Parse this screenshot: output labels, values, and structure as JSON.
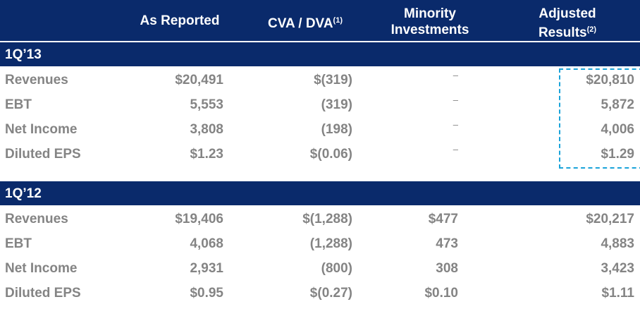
{
  "header": {
    "as_reported": "As Reported",
    "cva_dva": "CVA / DVA",
    "cva_dva_note": "(1)",
    "minority_line1": "Minority",
    "minority_line2": "Investments",
    "adjusted_line1": "Adjusted",
    "adjusted_line2": "Results",
    "adjusted_note": "(2)"
  },
  "sections": [
    {
      "label": "1Q’13",
      "rows": [
        {
          "label": "Revenues",
          "as_reported": "$20,491",
          "cva_dva": "$(319)",
          "minority": "–",
          "adjusted": "$20,810"
        },
        {
          "label": "EBT",
          "as_reported": "5,553",
          "cva_dva": "(319)",
          "minority": "–",
          "adjusted": "5,872"
        },
        {
          "label": "Net Income",
          "as_reported": "3,808",
          "cva_dva": "(198)",
          "minority": "–",
          "adjusted": "4,006"
        },
        {
          "label": "Diluted EPS",
          "as_reported": "$1.23",
          "cva_dva": "$(0.06)",
          "minority": "–",
          "adjusted": "$1.29"
        }
      ]
    },
    {
      "label": "1Q’12",
      "rows": [
        {
          "label": "Revenues",
          "as_reported": "$19,406",
          "cva_dva": "$(1,288)",
          "minority": "$477",
          "adjusted": "$20,217"
        },
        {
          "label": "EBT",
          "as_reported": "4,068",
          "cva_dva": "(1,288)",
          "minority": "473",
          "adjusted": "4,883"
        },
        {
          "label": "Net Income",
          "as_reported": "2,931",
          "cva_dva": "(800)",
          "minority": "308",
          "adjusted": "3,423"
        },
        {
          "label": "Diluted EPS",
          "as_reported": "$0.95",
          "cva_dva": "$(0.27)",
          "minority": "$0.10",
          "adjusted": "$1.11"
        }
      ]
    }
  ],
  "colors": {
    "header_bg": "#0a2a6b",
    "body_text": "#848484",
    "highlight_border": "#1aa3d9"
  }
}
